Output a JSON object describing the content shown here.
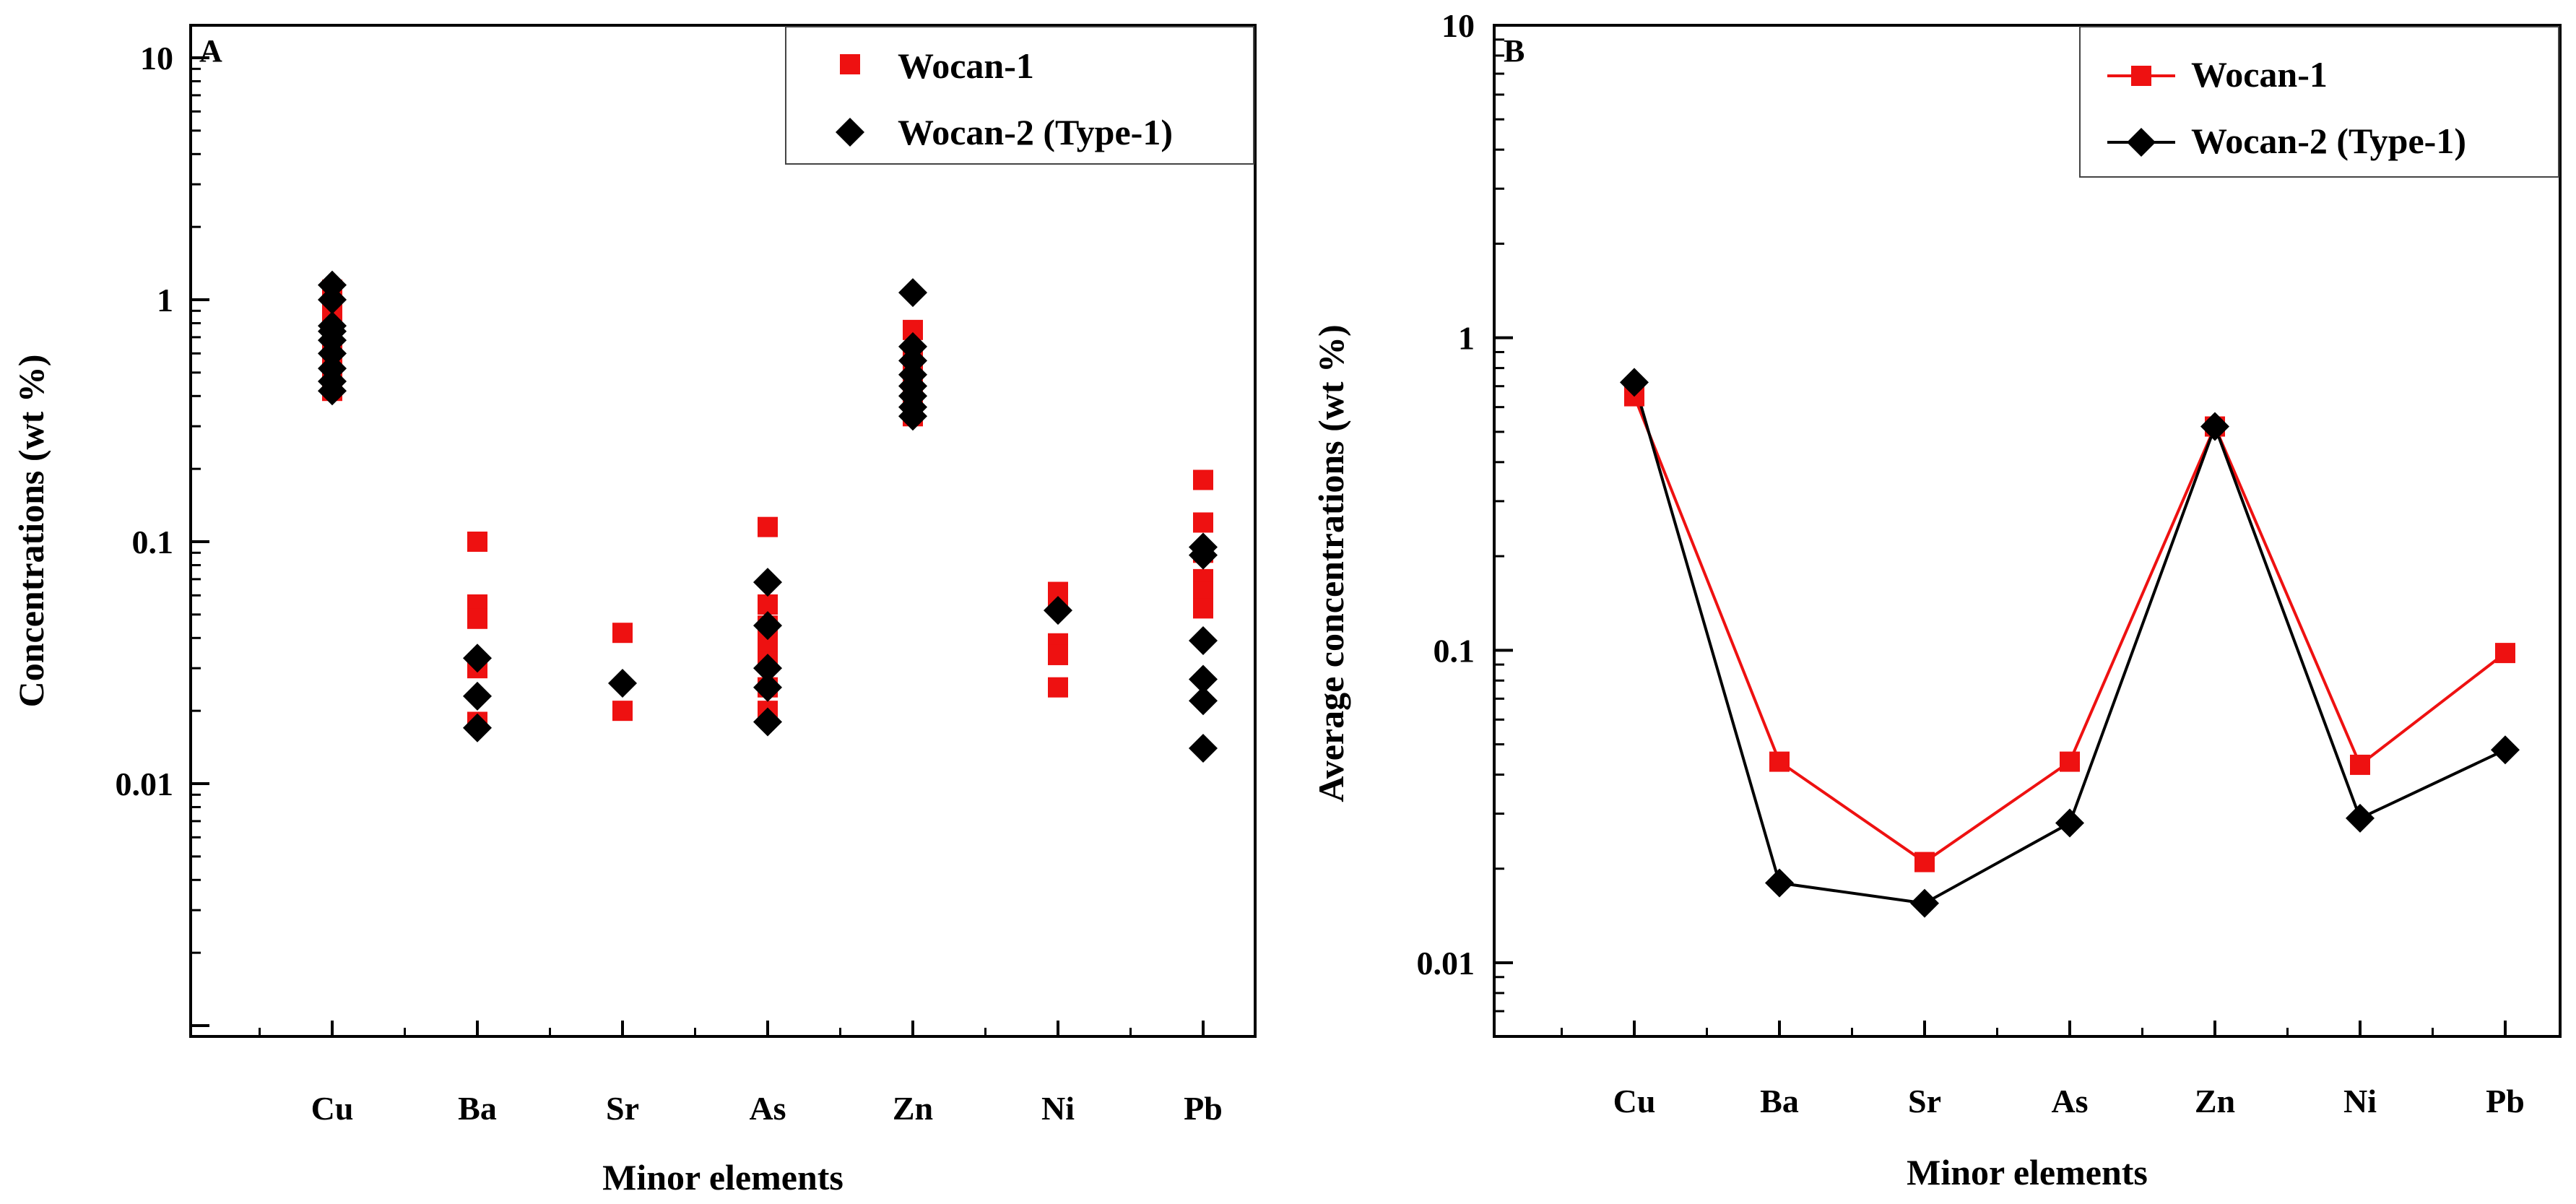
{
  "colors": {
    "wocan1": "#ee1111",
    "wocan2": "#000000",
    "axis": "#000000",
    "background": "#ffffff"
  },
  "chart_data": [
    {
      "panel": "A",
      "type": "scatter",
      "log_y": true,
      "ylim": [
        0.001,
        10
      ],
      "yticks": [
        "10",
        "1",
        "0.1",
        "0.01"
      ],
      "ytick_values": [
        10,
        1,
        0.1,
        0.01
      ],
      "categories": [
        "Cu",
        "Ba",
        "Sr",
        "As",
        "Zn",
        "Ni",
        "Pb"
      ],
      "xlabel": "Minor elements",
      "ylabel": "Concentrations (wt %)",
      "legend_position": "top-right",
      "series": [
        {
          "name": "Wocan-1",
          "marker": "square",
          "color": "#ee1111",
          "values": [
            [
              1.1,
              0.95,
              0.85,
              0.78,
              0.72,
              0.65,
              0.58,
              0.5,
              0.45,
              0.42
            ],
            [
              0.1,
              0.055,
              0.048,
              0.03,
              0.018
            ],
            [
              0.042,
              0.02
            ],
            [
              0.115,
              0.055,
              0.045,
              0.038,
              0.032,
              0.025,
              0.02
            ],
            [
              0.75,
              0.58,
              0.52,
              0.45,
              0.4,
              0.36,
              0.33
            ],
            [
              0.062,
              0.055,
              0.038,
              0.034,
              0.025
            ],
            [
              0.18,
              0.12,
              0.09,
              0.07,
              0.062,
              0.053
            ]
          ]
        },
        {
          "name": "Wocan-2 (Type-1)",
          "marker": "diamond",
          "color": "#000000",
          "values": [
            [
              1.15,
              1.0,
              0.78,
              0.74,
              0.68,
              0.6,
              0.52,
              0.46,
              0.42
            ],
            [
              0.033,
              0.023,
              0.017
            ],
            [
              0.026
            ],
            [
              0.068,
              0.045,
              0.03,
              0.025,
              0.018
            ],
            [
              1.07,
              0.64,
              0.56,
              0.49,
              0.44,
              0.4,
              0.36,
              0.33
            ],
            [
              0.052
            ],
            [
              0.095,
              0.088,
              0.039,
              0.027,
              0.022,
              0.014
            ]
          ]
        }
      ]
    },
    {
      "panel": "B",
      "type": "line",
      "log_y": true,
      "ylim": [
        0.007,
        10
      ],
      "yticks": [
        "10",
        "1",
        "0.1",
        "0.01"
      ],
      "ytick_values": [
        10,
        1,
        0.1,
        0.01
      ],
      "categories": [
        "Cu",
        "Ba",
        "Sr",
        "As",
        "Zn",
        "Ni",
        "Pb"
      ],
      "xlabel": "Minor elements",
      "ylabel": "Average concentrations (wt %)",
      "legend_position": "top-right",
      "series": [
        {
          "name": "Wocan-1",
          "marker": "square",
          "color": "#ee1111",
          "values": [
            0.65,
            0.044,
            0.021,
            0.044,
            0.52,
            0.043,
            0.098
          ]
        },
        {
          "name": "Wocan-2 (Type-1)",
          "marker": "diamond",
          "color": "#000000",
          "values": [
            0.72,
            0.018,
            0.0155,
            0.028,
            0.52,
            0.029,
            0.048
          ]
        }
      ]
    }
  ]
}
